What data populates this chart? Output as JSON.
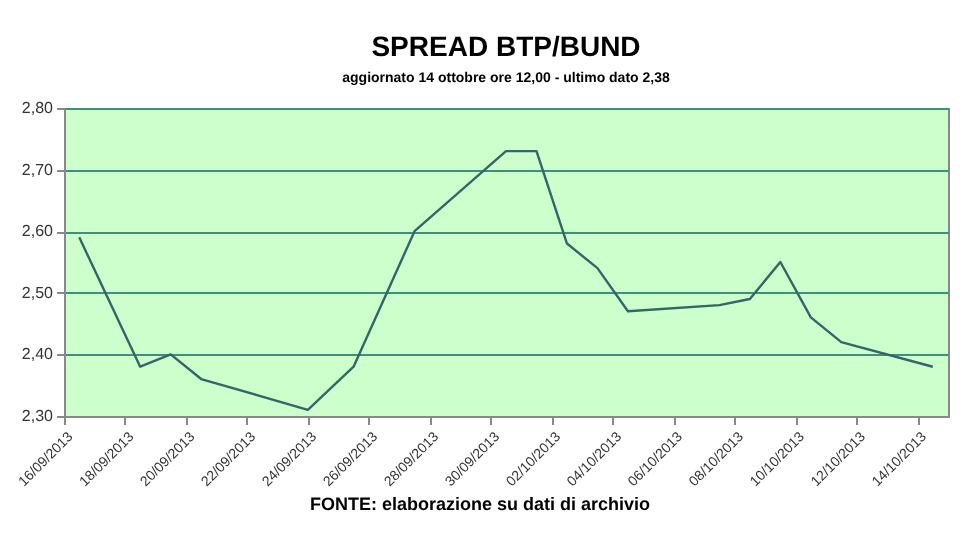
{
  "chart_data": {
    "type": "line",
    "title": "SPREAD BTP/BUND",
    "subtitle": "aggiornato 14 ottobre ore 12,00 - ultimo dato 2,38",
    "x": [
      "2013-09-16T12:00",
      "2013-09-18T12:00",
      "2013-09-19T12:00",
      "2013-09-20T12:00",
      "2013-09-24",
      "2013-09-25T12:00",
      "2013-09-27T12:00",
      "2013-09-30T12:00",
      "2013-10-01T12:00",
      "2013-10-02T12:00",
      "2013-10-03T12:00",
      "2013-10-04T12:00",
      "2013-10-07T12:00",
      "2013-10-08T12:00",
      "2013-10-09T12:00",
      "2013-10-10T12:00",
      "2013-10-11T12:00",
      "2013-10-14T12:00"
    ],
    "series": [
      {
        "color": "#336666",
        "values": [
          2.59,
          2.38,
          2.4,
          2.36,
          2.31,
          2.38,
          2.6,
          2.73,
          2.73,
          2.58,
          2.54,
          2.47,
          2.48,
          2.49,
          2.55,
          2.46,
          2.42,
          2.38
        ]
      }
    ],
    "xlim": [
      "2013-09-16",
      "2013-10-15"
    ],
    "xticks": [
      {
        "value": "2013-09-16",
        "label": "16/09/2013"
      },
      {
        "value": "2013-09-18",
        "label": "18/09/2013"
      },
      {
        "value": "2013-09-20",
        "label": "20/09/2013"
      },
      {
        "value": "2013-09-22",
        "label": "22/09/2013"
      },
      {
        "value": "2013-09-24",
        "label": "24/09/2013"
      },
      {
        "value": "2013-09-26",
        "label": "26/09/2013"
      },
      {
        "value": "2013-09-28",
        "label": "28/09/2013"
      },
      {
        "value": "2013-09-30",
        "label": "30/09/2013"
      },
      {
        "value": "2013-10-02",
        "label": "02/10/2013"
      },
      {
        "value": "2013-10-04",
        "label": "04/10/2013"
      },
      {
        "value": "2013-10-06",
        "label": "06/10/2013"
      },
      {
        "value": "2013-10-08",
        "label": "08/10/2013"
      },
      {
        "value": "2013-10-10",
        "label": "10/10/2013"
      },
      {
        "value": "2013-10-12",
        "label": "12/10/2013"
      },
      {
        "value": "2013-10-14",
        "label": "14/10/2013"
      }
    ],
    "ylim": [
      2.3,
      2.8
    ],
    "yticks": [
      {
        "value": 2.3,
        "label": "2,30"
      },
      {
        "value": 2.4,
        "label": "2,40"
      },
      {
        "value": 2.5,
        "label": "2,50"
      },
      {
        "value": 2.6,
        "label": "2,60"
      },
      {
        "value": 2.7,
        "label": "2,70"
      },
      {
        "value": 2.8,
        "label": "2,80"
      }
    ],
    "grid": "y",
    "marker": "none",
    "line_style": "solid",
    "annotations": [
      "FONTE: elaborazione su dati di archivio"
    ]
  }
}
